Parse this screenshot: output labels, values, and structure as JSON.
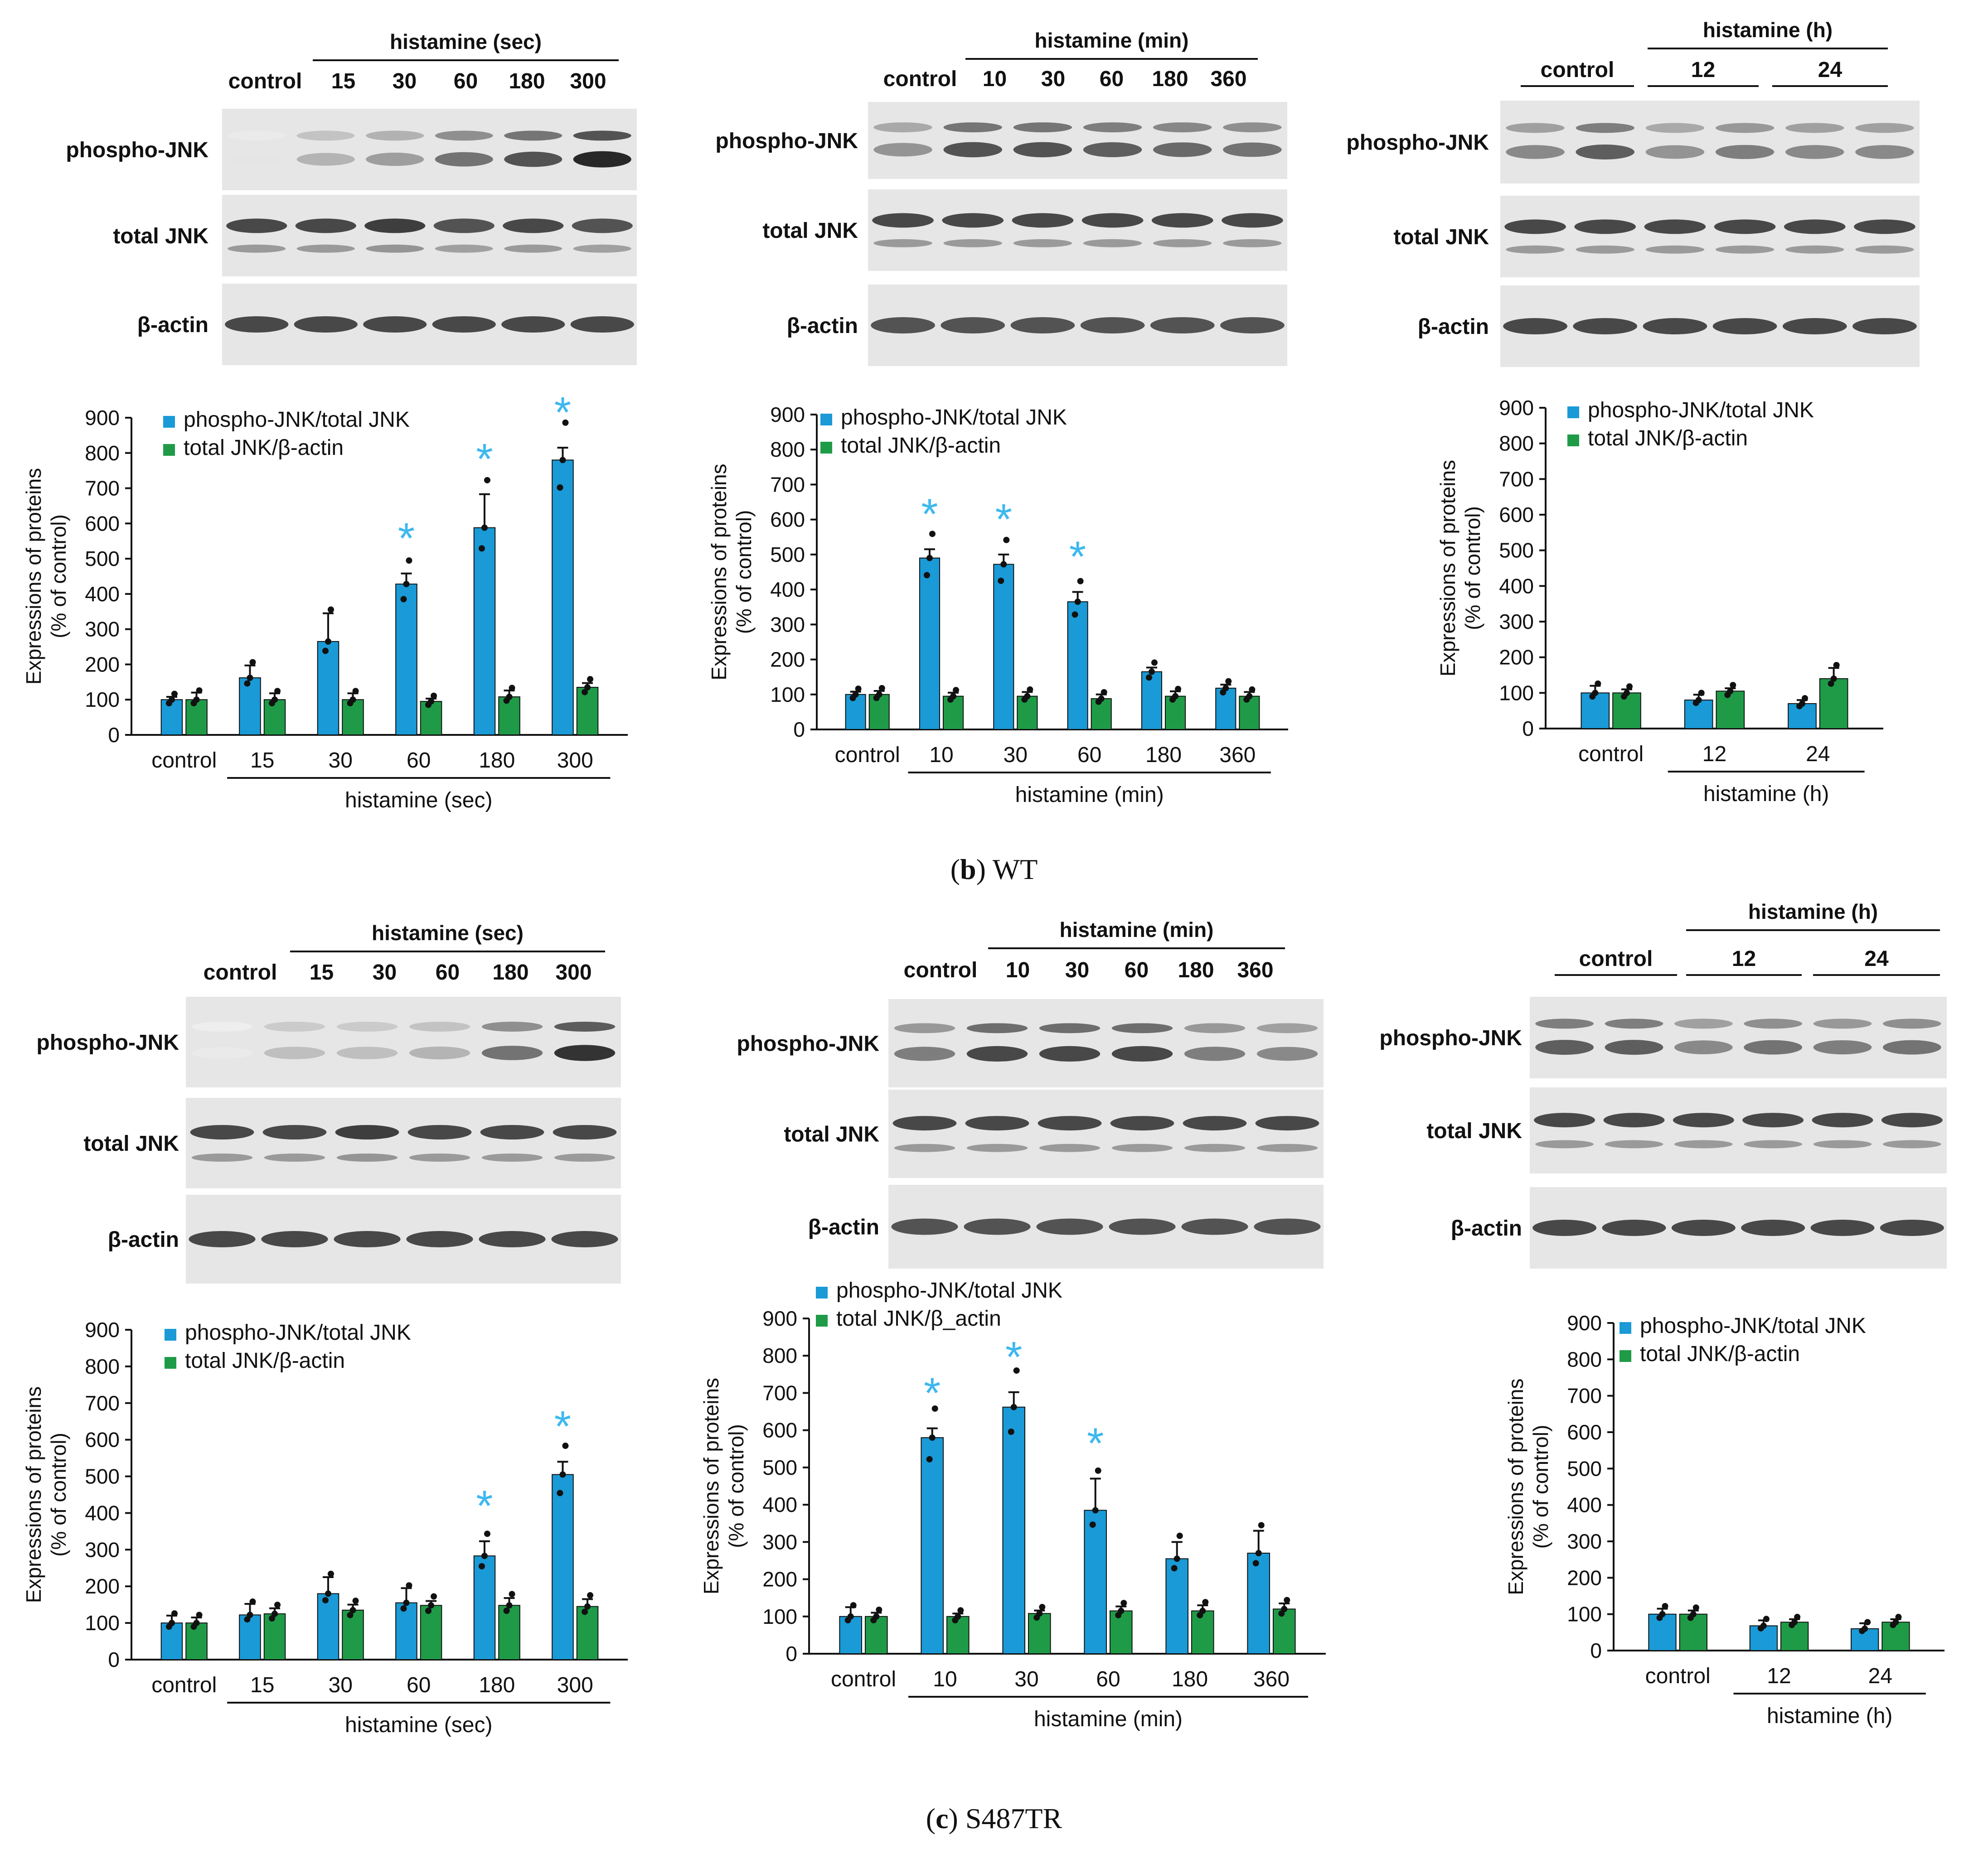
{
  "colors": {
    "phospho": "#1a9ad6",
    "total": "#1f9b47",
    "star": "#3db8ef",
    "text": "#111111"
  },
  "legend": {
    "phospho": "phospho-JNK/total JNK",
    "total": "total JNK/β-actin",
    "total_alt": "total JNK/β_actin"
  },
  "y_label_line1": "Expressions of proteins",
  "y_label_line2": "(% of control)",
  "blot_labels": {
    "phospho": "phospho-JNK",
    "total": "total JNK",
    "actin": "β-actin"
  },
  "captions": {
    "b_letter": "b",
    "b_text": "WT",
    "c_letter": "c",
    "c_text": "S487TR"
  },
  "chart_data": [
    {
      "id": "wt-sec",
      "type": "bar",
      "title": "",
      "xlabel": "histamine (sec)",
      "ylabel": "Expressions of proteins (% of control)",
      "ylim": [
        0,
        900
      ],
      "yticks": [
        "0",
        "100",
        "200",
        "300",
        "400",
        "500",
        "600",
        "700",
        "800",
        "900"
      ],
      "control_label": "control",
      "categories": [
        "control",
        "15",
        "30",
        "60",
        "180",
        "300"
      ],
      "series": [
        {
          "name": "phospho-JNK/total JNK",
          "values": [
            100,
            162,
            265,
            428,
            588,
            780
          ],
          "errors": [
            8,
            35,
            80,
            30,
            95,
            35
          ]
        },
        {
          "name": "total JNK/β-actin",
          "values": [
            100,
            100,
            100,
            95,
            108,
            135
          ],
          "errors": [
            20,
            18,
            18,
            8,
            18,
            12
          ]
        }
      ],
      "significant": [
        "60",
        "180",
        "300"
      ]
    },
    {
      "id": "wt-min",
      "type": "bar",
      "title": "",
      "xlabel": "histamine (min)",
      "ylabel": "Expressions of proteins (% of control)",
      "ylim": [
        0,
        900
      ],
      "yticks": [
        "0",
        "100",
        "200",
        "300",
        "400",
        "500",
        "600",
        "700",
        "800",
        "900"
      ],
      "control_label": "control",
      "categories": [
        "control",
        "10",
        "30",
        "60",
        "180",
        "360"
      ],
      "series": [
        {
          "name": "phospho-JNK/total JNK",
          "values": [
            100,
            490,
            472,
            365,
            165,
            118
          ],
          "errors": [
            8,
            25,
            28,
            28,
            12,
            10
          ]
        },
        {
          "name": "total JNK/β-actin",
          "values": [
            100,
            95,
            95,
            88,
            95,
            95
          ],
          "errors": [
            10,
            10,
            12,
            12,
            14,
            12
          ]
        }
      ],
      "significant": [
        "10",
        "30",
        "60"
      ]
    },
    {
      "id": "wt-h",
      "type": "bar",
      "title": "",
      "xlabel": "histamine (h)",
      "ylabel": "Expressions of proteins (% of control)",
      "ylim": [
        0,
        900
      ],
      "yticks": [
        "0",
        "100",
        "200",
        "300",
        "400",
        "500",
        "600",
        "700",
        "800",
        "900"
      ],
      "control_label": "control",
      "categories": [
        "control",
        "12",
        "24"
      ],
      "series": [
        {
          "name": "phospho-JNK/total JNK",
          "values": [
            100,
            80,
            70
          ],
          "errors": [
            20,
            15,
            10
          ]
        },
        {
          "name": "total JNK/β-actin",
          "values": [
            100,
            105,
            140
          ],
          "errors": [
            10,
            8,
            30
          ]
        }
      ],
      "significant": []
    },
    {
      "id": "s487tr-sec",
      "type": "bar",
      "title": "",
      "xlabel": "histamine (sec)",
      "ylabel": "Expressions of proteins (% of control)",
      "ylim": [
        0,
        900
      ],
      "yticks": [
        "0",
        "100",
        "200",
        "300",
        "400",
        "500",
        "600",
        "700",
        "800",
        "900"
      ],
      "control_label": "control",
      "categories": [
        "control",
        "15",
        "30",
        "60",
        "180",
        "300"
      ],
      "series": [
        {
          "name": "phospho-JNK/total JNK",
          "values": [
            100,
            122,
            180,
            155,
            283,
            505
          ],
          "errors": [
            20,
            30,
            45,
            40,
            40,
            35
          ]
        },
        {
          "name": "total JNK/β-actin",
          "values": [
            100,
            125,
            135,
            148,
            148,
            145
          ],
          "errors": [
            15,
            15,
            15,
            12,
            20,
            20
          ]
        }
      ],
      "significant": [
        "180",
        "300"
      ]
    },
    {
      "id": "s487tr-min",
      "type": "bar",
      "title": "",
      "xlabel": "histamine (min)",
      "ylabel": "Expressions of proteins (% of control)",
      "ylim": [
        0,
        900
      ],
      "yticks": [
        "0",
        "100",
        "200",
        "300",
        "400",
        "500",
        "600",
        "700",
        "800",
        "900"
      ],
      "control_label": "control",
      "categories": [
        "control",
        "10",
        "30",
        "60",
        "180",
        "360"
      ],
      "series": [
        {
          "name": "phospho-JNK/total JNK",
          "values": [
            100,
            580,
            662,
            385,
            255,
            270
          ],
          "errors": [
            25,
            25,
            40,
            85,
            45,
            60
          ]
        },
        {
          "name": "total JNK/β_actin",
          "values": [
            100,
            100,
            108,
            115,
            115,
            120
          ],
          "errors": [
            10,
            8,
            8,
            12,
            15,
            15
          ]
        }
      ],
      "significant": [
        "10",
        "30",
        "60"
      ]
    },
    {
      "id": "s487tr-h",
      "type": "bar",
      "title": "",
      "xlabel": "histamine (h)",
      "ylabel": "Expressions of proteins (% of control)",
      "ylim": [
        0,
        900
      ],
      "yticks": [
        "0",
        "100",
        "200",
        "300",
        "400",
        "500",
        "600",
        "700",
        "800",
        "900"
      ],
      "control_label": "control",
      "categories": [
        "control",
        "12",
        "24"
      ],
      "series": [
        {
          "name": "phospho-JNK/total JNK",
          "values": [
            100,
            68,
            60
          ],
          "errors": [
            15,
            15,
            15
          ]
        },
        {
          "name": "total JNK/β-actin",
          "values": [
            100,
            78,
            78
          ],
          "errors": [
            10,
            8,
            8
          ]
        }
      ],
      "significant": []
    }
  ],
  "blots": [
    {
      "id": "wt-sec",
      "group_label": "histamine (sec)",
      "control_label": "control",
      "time_labels": [
        "15",
        "30",
        "60",
        "180",
        "300"
      ],
      "phospho_intensity": [
        0.12,
        0.35,
        0.45,
        0.65,
        0.8,
        1.0
      ],
      "total_intensity": [
        0.85,
        0.85,
        0.9,
        0.8,
        0.85,
        0.8
      ],
      "actin_intensity": [
        0.85,
        0.85,
        0.85,
        0.85,
        0.85,
        0.85
      ]
    },
    {
      "id": "wt-min",
      "group_label": "histamine (min)",
      "control_label": "control",
      "time_labels": [
        "10",
        "30",
        "60",
        "180",
        "360"
      ],
      "phospho_intensity": [
        0.5,
        0.8,
        0.8,
        0.75,
        0.7,
        0.65
      ],
      "total_intensity": [
        0.85,
        0.85,
        0.85,
        0.85,
        0.85,
        0.85
      ],
      "actin_intensity": [
        0.8,
        0.8,
        0.8,
        0.8,
        0.8,
        0.8
      ]
    },
    {
      "id": "wt-h",
      "group_label": "histamine (h)",
      "control_label": "control",
      "time_labels": [
        "12",
        "24"
      ],
      "phospho_intensity": [
        0.55,
        0.75,
        0.5,
        0.6,
        0.55,
        0.55
      ],
      "total_intensity": [
        0.85,
        0.85,
        0.85,
        0.85,
        0.85,
        0.85
      ],
      "actin_intensity": [
        0.85,
        0.85,
        0.85,
        0.85,
        0.85,
        0.85
      ]
    },
    {
      "id": "s487tr-sec",
      "group_label": "histamine (sec)",
      "control_label": "control",
      "time_labels": [
        "15",
        "30",
        "60",
        "180",
        "300"
      ],
      "phospho_intensity": [
        0.1,
        0.3,
        0.3,
        0.35,
        0.65,
        0.95
      ],
      "total_intensity": [
        0.85,
        0.85,
        0.9,
        0.85,
        0.85,
        0.85
      ],
      "actin_intensity": [
        0.85,
        0.85,
        0.85,
        0.85,
        0.85,
        0.85
      ]
    },
    {
      "id": "s487tr-min",
      "group_label": "histamine (min)",
      "control_label": "control",
      "time_labels": [
        "10",
        "30",
        "60",
        "180",
        "360"
      ],
      "phospho_intensity": [
        0.6,
        0.85,
        0.85,
        0.85,
        0.6,
        0.55
      ],
      "total_intensity": [
        0.85,
        0.85,
        0.85,
        0.85,
        0.85,
        0.85
      ],
      "actin_intensity": [
        0.8,
        0.8,
        0.8,
        0.8,
        0.8,
        0.8
      ]
    },
    {
      "id": "s487tr-h",
      "group_label": "histamine (h)",
      "control_label": "control",
      "time_labels": [
        "12",
        "24"
      ],
      "phospho_intensity": [
        0.75,
        0.75,
        0.55,
        0.65,
        0.6,
        0.65
      ],
      "total_intensity": [
        0.85,
        0.85,
        0.85,
        0.85,
        0.85,
        0.85
      ],
      "actin_intensity": [
        0.85,
        0.85,
        0.85,
        0.85,
        0.85,
        0.85
      ]
    }
  ]
}
